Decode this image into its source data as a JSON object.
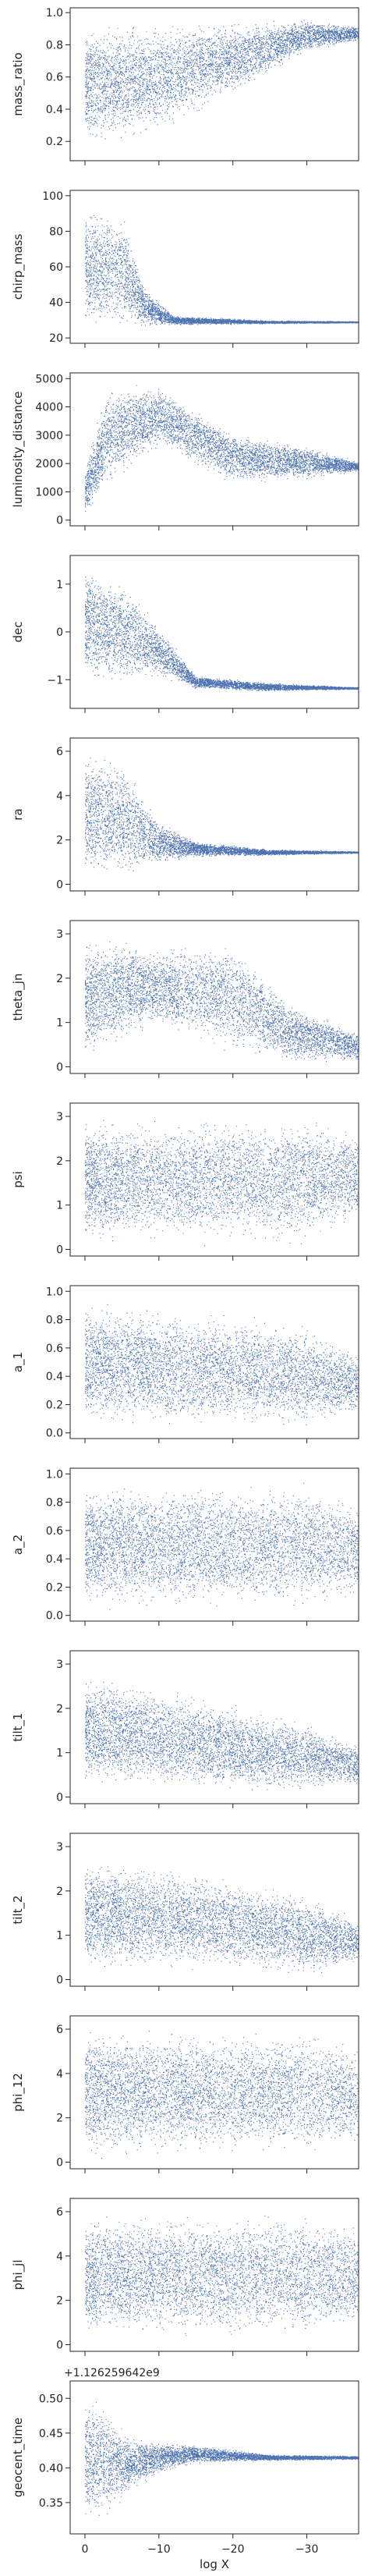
{
  "chart_data": {
    "type": "scatter",
    "layout": "14 vertically stacked panels sharing one x axis",
    "xlabel": "log X",
    "x_ticks": [
      0,
      -10,
      -20,
      -30
    ],
    "x_tick_labels": [
      "0",
      "−10",
      "−20",
      "−30"
    ],
    "xlim": [
      2,
      -37
    ],
    "marker_color": "#4c72b0",
    "x_range_of_samples": [
      0,
      -37
    ],
    "panels": [
      {
        "ylabel": "mass_ratio",
        "ylim": [
          0.08,
          1.03
        ],
        "yticks": [
          0.2,
          0.4,
          0.6,
          0.8,
          1.0
        ],
        "ytick_labels": [
          "0.2",
          "0.4",
          "0.6",
          "0.8",
          "1.0"
        ],
        "trend": [
          [
            0,
            0.12,
            0.98
          ],
          [
            -5,
            0.15,
            0.98
          ],
          [
            -10,
            0.22,
            0.98
          ],
          [
            -20,
            0.45,
            0.98
          ],
          [
            -30,
            0.75,
            0.97
          ],
          [
            -37,
            0.82,
            0.92
          ]
        ]
      },
      {
        "ylabel": "chirp_mass",
        "ylim": [
          17,
          103
        ],
        "yticks": [
          20,
          40,
          60,
          80,
          100
        ],
        "ytick_labels": [
          "20",
          "40",
          "60",
          "80",
          "100"
        ],
        "trend": [
          [
            0,
            20,
            100
          ],
          [
            -5,
            22,
            95
          ],
          [
            -8,
            25,
            50
          ],
          [
            -12,
            27,
            33
          ],
          [
            -25,
            28,
            30
          ],
          [
            -37,
            28.5,
            29.5
          ]
        ]
      },
      {
        "ylabel": "luminosity_distance",
        "ylim": [
          -200,
          5200
        ],
        "yticks": [
          0,
          1000,
          2000,
          3000,
          4000,
          5000
        ],
        "ytick_labels": [
          "0",
          "1000",
          "2000",
          "3000",
          "4000",
          "5000"
        ],
        "trend": [
          [
            0,
            50,
            2000
          ],
          [
            -3,
            1000,
            5000
          ],
          [
            -10,
            2500,
            4900
          ],
          [
            -20,
            1200,
            3200
          ],
          [
            -30,
            1400,
            2700
          ],
          [
            -37,
            1700,
            2100
          ]
        ]
      },
      {
        "ylabel": "dec",
        "ylim": [
          -1.6,
          1.6
        ],
        "yticks": [
          -1,
          0,
          1
        ],
        "ytick_labels": [
          "−1",
          "0",
          "1"
        ],
        "trend": [
          [
            0,
            -1.2,
            1.5
          ],
          [
            -5,
            -1.2,
            1.2
          ],
          [
            -10,
            -1.0,
            0.2
          ],
          [
            -15,
            -1.2,
            -0.9
          ],
          [
            -25,
            -1.25,
            -1.05
          ],
          [
            -37,
            -1.2,
            -1.15
          ]
        ]
      },
      {
        "ylabel": "ra",
        "ylim": [
          -0.3,
          6.6
        ],
        "yticks": [
          0,
          2,
          4,
          6
        ],
        "ytick_labels": [
          "0",
          "2",
          "4",
          "6"
        ],
        "trend": [
          [
            0,
            0,
            6.3
          ],
          [
            -5,
            0,
            6.0
          ],
          [
            -10,
            0.8,
            3.0
          ],
          [
            -15,
            1.2,
            2.0
          ],
          [
            -25,
            1.3,
            1.6
          ],
          [
            -37,
            1.4,
            1.5
          ]
        ]
      },
      {
        "ylabel": "theta_jn",
        "ylim": [
          -0.15,
          3.3
        ],
        "yticks": [
          0,
          1,
          2,
          3
        ],
        "ytick_labels": [
          "0",
          "1",
          "2",
          "3"
        ],
        "trend": [
          [
            0,
            0,
            3.0
          ],
          [
            -5,
            0.5,
            3.0
          ],
          [
            -10,
            0.8,
            2.8
          ],
          [
            -20,
            0.2,
            3.0
          ],
          [
            -28,
            0,
            1.5
          ],
          [
            -37,
            0.1,
            0.8
          ]
        ]
      },
      {
        "ylabel": "psi",
        "ylim": [
          -0.15,
          3.3
        ],
        "yticks": [
          0,
          1,
          2,
          3
        ],
        "ytick_labels": [
          "0",
          "1",
          "2",
          "3"
        ],
        "trend": [
          [
            0,
            0,
            3.14
          ],
          [
            -30,
            0,
            3.14
          ],
          [
            -37,
            0.5,
            2.8
          ]
        ]
      },
      {
        "ylabel": "a_1",
        "ylim": [
          -0.04,
          1.04
        ],
        "yticks": [
          0.0,
          0.2,
          0.4,
          0.6,
          0.8,
          1.0
        ],
        "ytick_labels": [
          "0.0",
          "0.2",
          "0.4",
          "0.6",
          "0.8",
          "1.0"
        ],
        "trend": [
          [
            0,
            0,
            0.99
          ],
          [
            -15,
            0,
            0.9
          ],
          [
            -30,
            0,
            0.8
          ],
          [
            -37,
            0.1,
            0.6
          ]
        ]
      },
      {
        "ylabel": "a_2",
        "ylim": [
          -0.04,
          1.04
        ],
        "yticks": [
          0.0,
          0.2,
          0.4,
          0.6,
          0.8,
          1.0
        ],
        "ytick_labels": [
          "0.0",
          "0.2",
          "0.4",
          "0.6",
          "0.8",
          "1.0"
        ],
        "trend": [
          [
            0,
            0,
            0.99
          ],
          [
            -30,
            0,
            0.99
          ],
          [
            -37,
            0.1,
            0.8
          ]
        ]
      },
      {
        "ylabel": "tilt_1",
        "ylim": [
          -0.15,
          3.3
        ],
        "yticks": [
          0,
          1,
          2,
          3
        ],
        "ytick_labels": [
          "0",
          "1",
          "2",
          "3"
        ],
        "trend": [
          [
            0,
            0.1,
            3.0
          ],
          [
            -10,
            0.1,
            2.6
          ],
          [
            -20,
            0,
            2.2
          ],
          [
            -30,
            0,
            1.8
          ],
          [
            -37,
            0.2,
            1.2
          ]
        ]
      },
      {
        "ylabel": "tilt_2",
        "ylim": [
          -0.15,
          3.3
        ],
        "yticks": [
          0,
          1,
          2,
          3
        ],
        "ytick_labels": [
          "0",
          "1",
          "2",
          "3"
        ],
        "trend": [
          [
            0,
            0.1,
            2.9
          ],
          [
            -15,
            0.1,
            2.6
          ],
          [
            -30,
            0,
            2.0
          ],
          [
            -37,
            0.3,
            1.4
          ]
        ]
      },
      {
        "ylabel": "phi_12",
        "ylim": [
          -0.3,
          6.6
        ],
        "yticks": [
          0,
          2,
          4,
          6
        ],
        "ytick_labels": [
          "0",
          "2",
          "4",
          "6"
        ],
        "trend": [
          [
            0,
            0,
            6.28
          ],
          [
            -30,
            0,
            6.28
          ],
          [
            -37,
            0.5,
            5.5
          ]
        ]
      },
      {
        "ylabel": "phi_jl",
        "ylim": [
          -0.3,
          6.6
        ],
        "yticks": [
          0,
          2,
          4,
          6
        ],
        "ytick_labels": [
          "0",
          "2",
          "4",
          "6"
        ],
        "trend": [
          [
            0,
            0,
            6.28
          ],
          [
            -30,
            0,
            6.28
          ],
          [
            -37,
            0.5,
            5.5
          ]
        ]
      },
      {
        "ylabel": "geocent_time",
        "ylim": [
          0.305,
          0.525
        ],
        "yticks": [
          0.35,
          0.4,
          0.45,
          0.5
        ],
        "ytick_labels": [
          "0.35",
          "0.40",
          "0.45",
          "0.50"
        ],
        "offset_text": "+1.126259642e9",
        "trend": [
          [
            0,
            0.31,
            0.52
          ],
          [
            -3,
            0.32,
            0.5
          ],
          [
            -6,
            0.36,
            0.45
          ],
          [
            -10,
            0.39,
            0.44
          ],
          [
            -15,
            0.405,
            0.435
          ],
          [
            -25,
            0.41,
            0.42
          ],
          [
            -37,
            0.412,
            0.418
          ]
        ]
      }
    ]
  }
}
